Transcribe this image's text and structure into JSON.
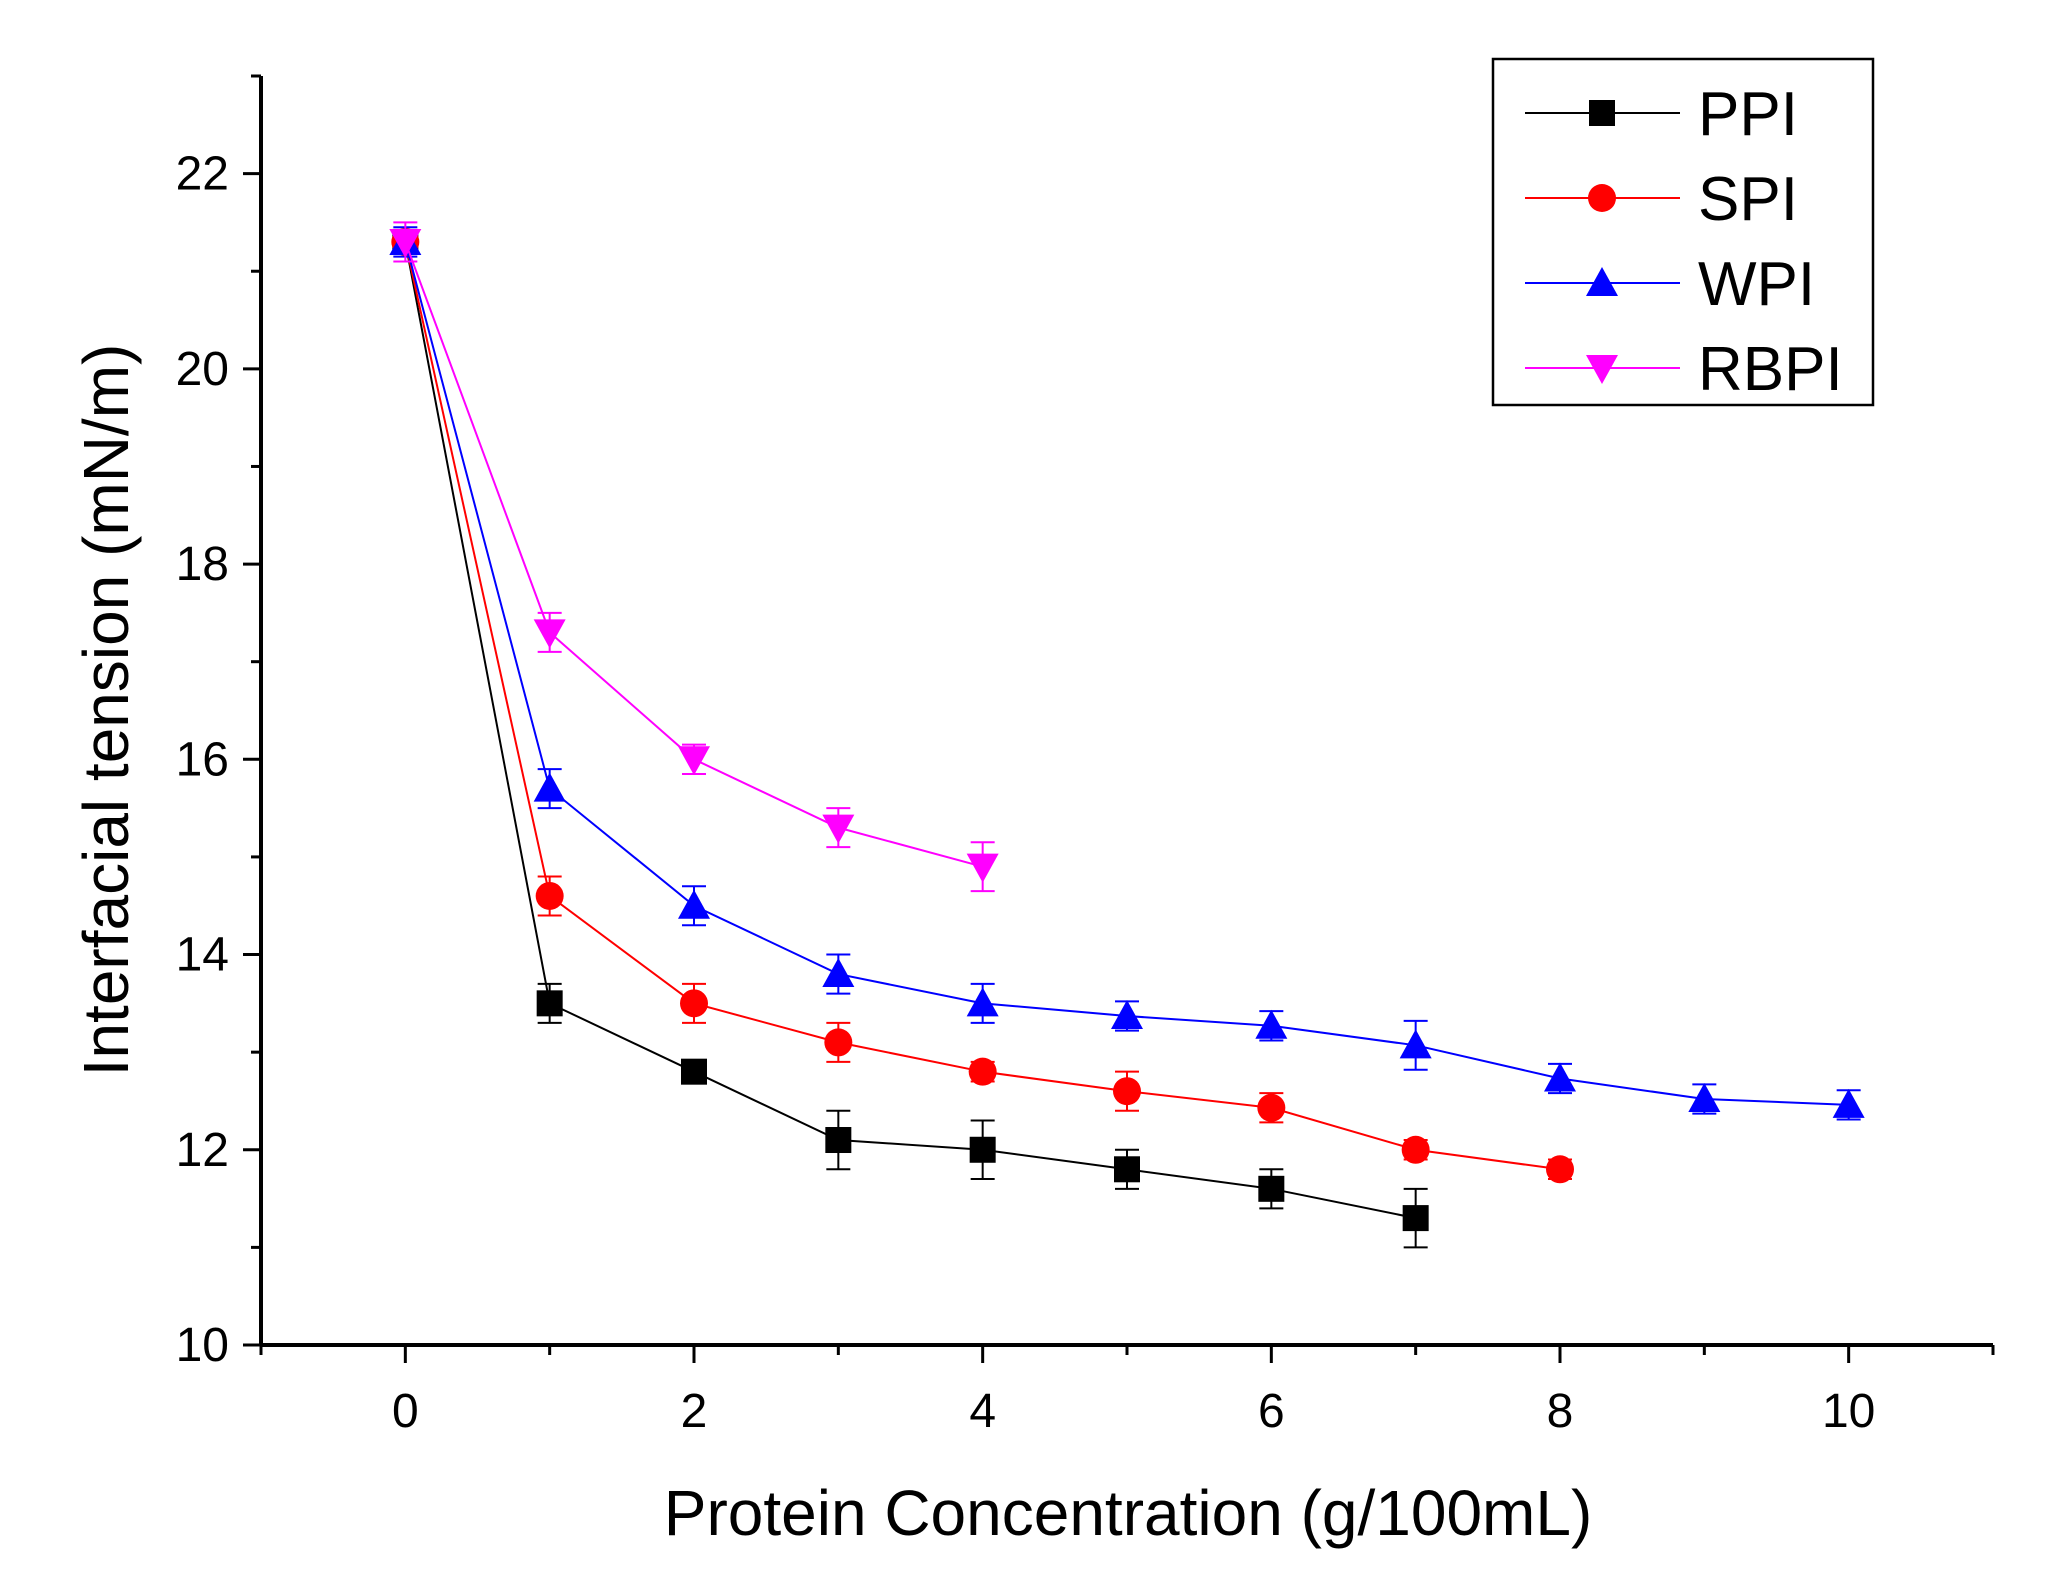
{
  "chart_data": {
    "type": "line",
    "title": "",
    "xlabel": "Protein Concentration (g/100mL)",
    "ylabel": "Interfacial tension (mN/m)",
    "xlim": [
      -1,
      11
    ],
    "ylim": [
      10,
      23
    ],
    "xticks": [
      0,
      2,
      4,
      6,
      8,
      10
    ],
    "yticks": [
      10,
      12,
      14,
      16,
      18,
      20,
      22
    ],
    "grid": false,
    "legend_position": "top-right",
    "series": [
      {
        "name": "PPI",
        "color": "#000000",
        "marker": "square",
        "x": [
          0,
          1,
          2,
          3,
          4,
          5,
          6,
          7
        ],
        "y": [
          21.3,
          13.5,
          12.8,
          12.1,
          12.0,
          11.8,
          11.6,
          11.3
        ],
        "err": [
          0.1,
          0.2,
          0.1,
          0.3,
          0.3,
          0.2,
          0.2,
          0.3
        ]
      },
      {
        "name": "SPI",
        "color": "#ff0000",
        "marker": "circle",
        "x": [
          0,
          1,
          2,
          3,
          4,
          5,
          6,
          7,
          8
        ],
        "y": [
          21.3,
          14.6,
          13.5,
          13.1,
          12.8,
          12.6,
          12.43,
          12.0,
          11.8
        ],
        "err": [
          0.1,
          0.2,
          0.2,
          0.2,
          0.1,
          0.2,
          0.15,
          0.1,
          0.1
        ]
      },
      {
        "name": "WPI",
        "color": "#0000ff",
        "marker": "triangle-up",
        "x": [
          0,
          1,
          2,
          3,
          4,
          5,
          6,
          7,
          8,
          9,
          10
        ],
        "y": [
          21.3,
          15.7,
          14.5,
          13.8,
          13.5,
          13.37,
          13.27,
          13.07,
          12.73,
          12.52,
          12.46
        ],
        "err": [
          0.15,
          0.2,
          0.2,
          0.2,
          0.2,
          0.15,
          0.15,
          0.25,
          0.15,
          0.15,
          0.15
        ]
      },
      {
        "name": "RBPI",
        "color": "#ff00ff",
        "marker": "triangle-down",
        "x": [
          0,
          1,
          2,
          3,
          4
        ],
        "y": [
          21.3,
          17.3,
          16.0,
          15.3,
          14.9
        ],
        "err": [
          0.2,
          0.2,
          0.15,
          0.2,
          0.25
        ]
      }
    ]
  }
}
